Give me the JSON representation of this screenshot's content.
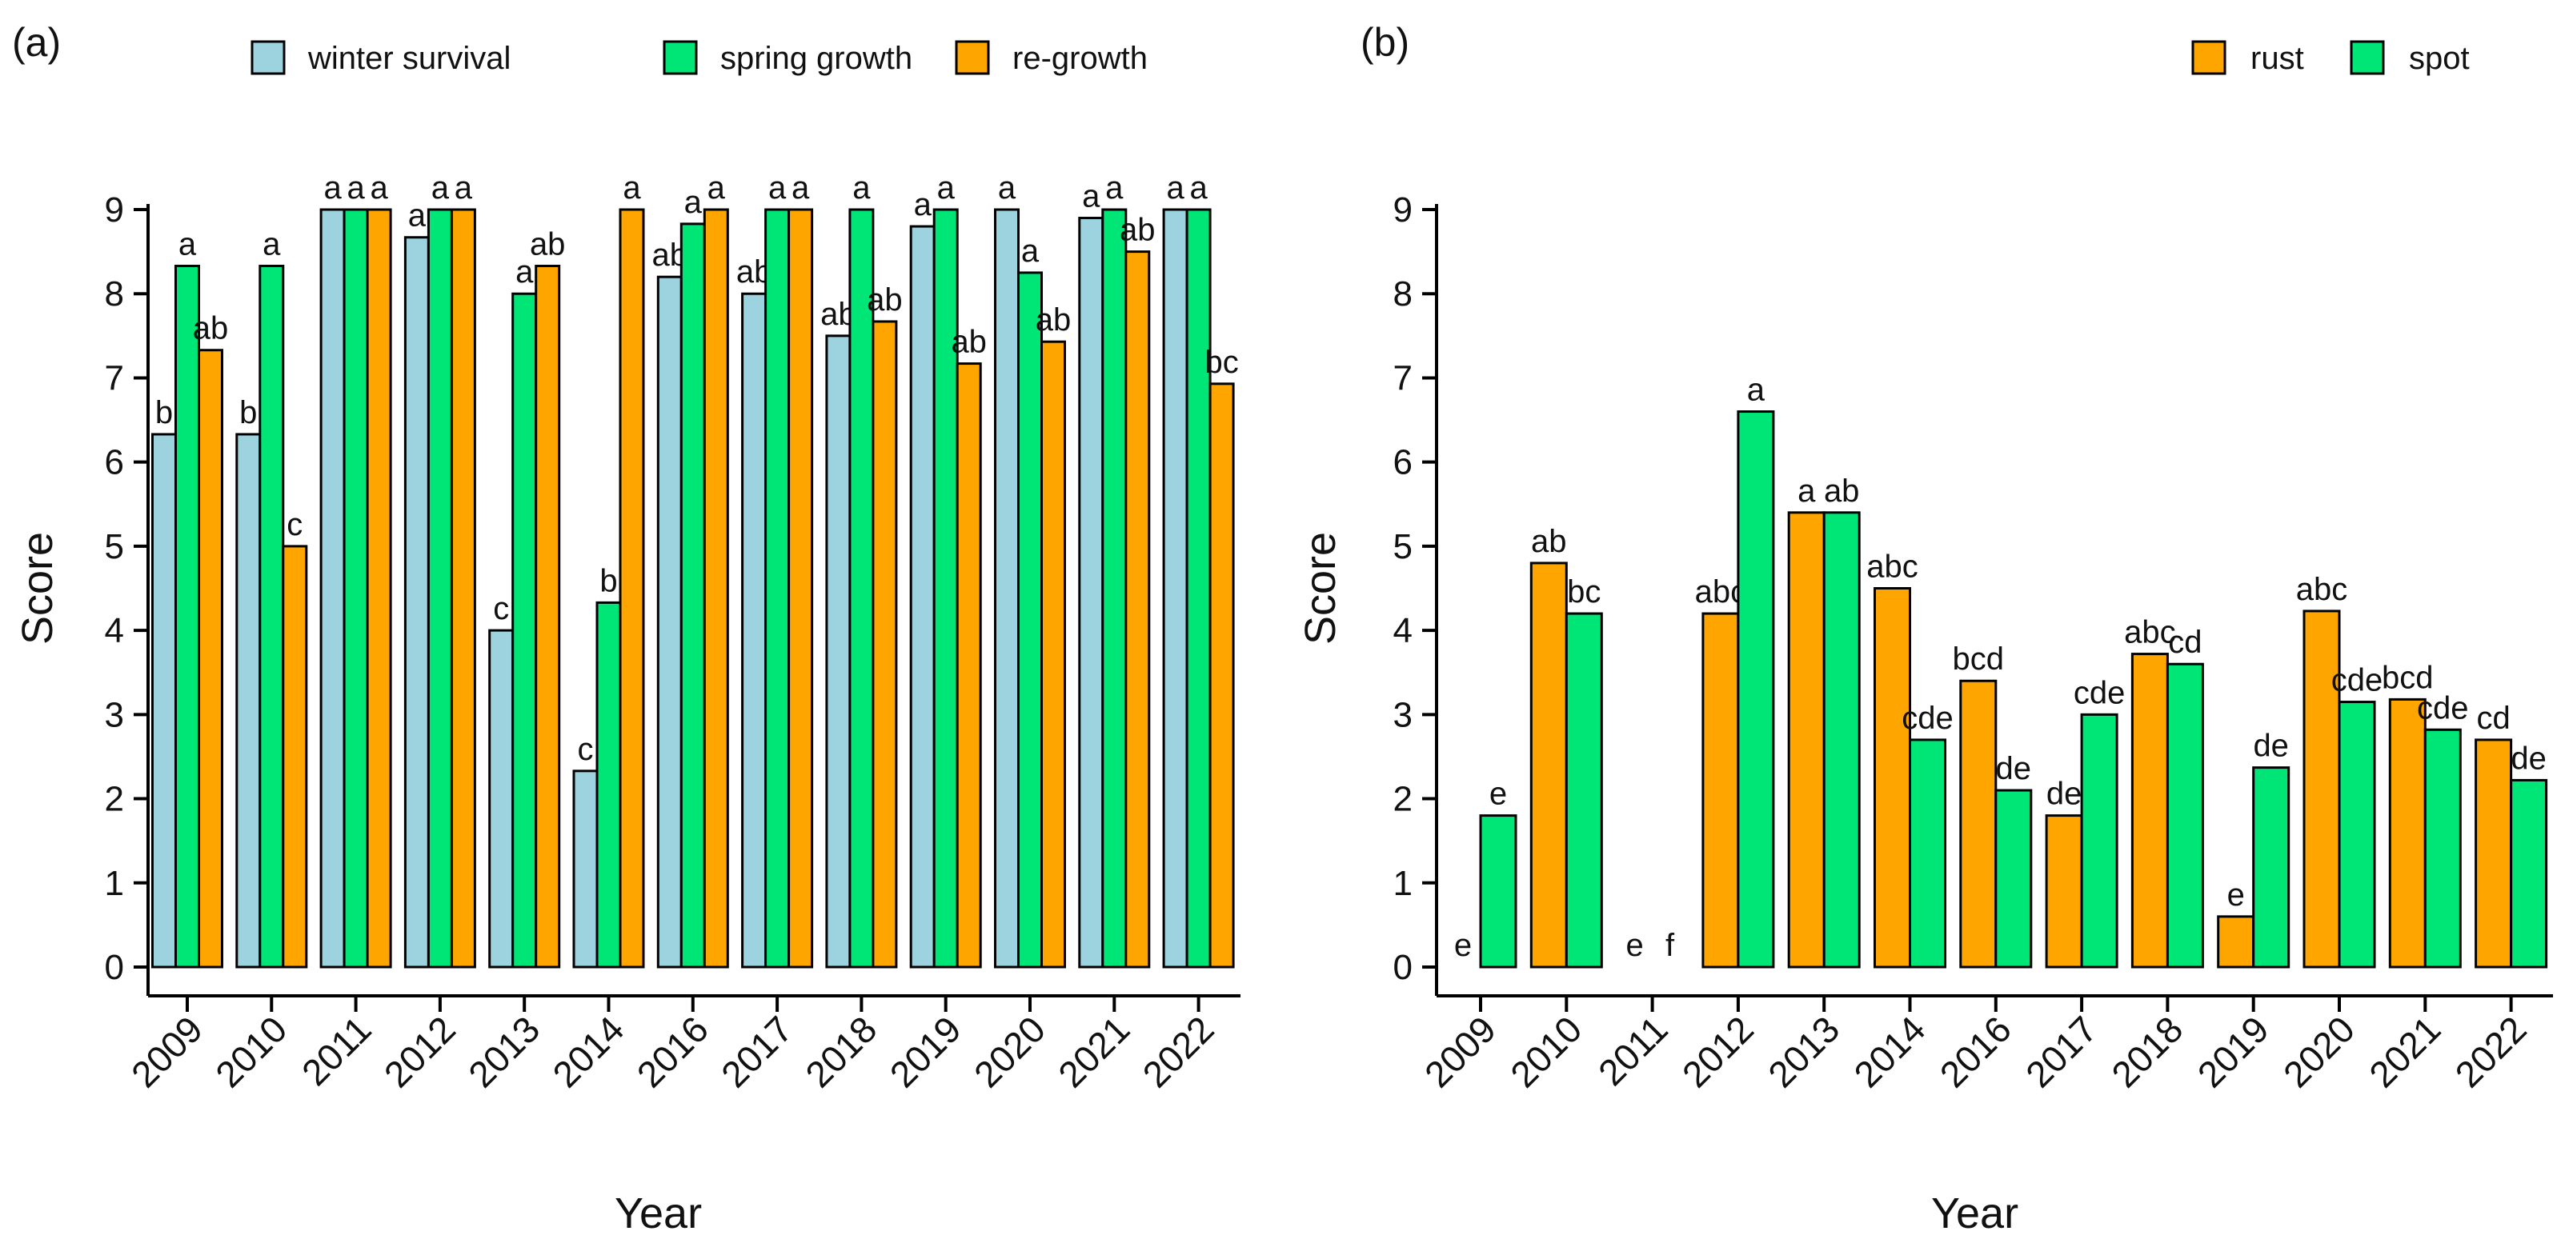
{
  "chart_data": [
    {
      "type": "bar",
      "panel_label": "(a)",
      "xlabel": "Year",
      "ylabel": "Score",
      "ylim": [
        0,
        9
      ],
      "yticks": [
        "0",
        "1",
        "2",
        "3",
        "4",
        "5",
        "6",
        "7",
        "8",
        "9"
      ],
      "categories": [
        "2009",
        "2010",
        "2011",
        "2012",
        "2013",
        "2014",
        "2016",
        "2017",
        "2018",
        "2019",
        "2020",
        "2021",
        "2022"
      ],
      "legend_position": "top",
      "series": [
        {
          "name": "winter survival",
          "color": "#9dd3df",
          "values": [
            6.33,
            6.33,
            9.0,
            8.67,
            4.0,
            2.33,
            8.2,
            8.0,
            7.5,
            8.8,
            9.0,
            8.9,
            9.0
          ],
          "labels": [
            "b",
            "b",
            "a",
            "a",
            "c",
            "c",
            "ab",
            "ab",
            "ab",
            "a",
            "a",
            "a",
            "a"
          ]
        },
        {
          "name": "spring growth",
          "color": "#00e676",
          "values": [
            8.33,
            8.33,
            9.0,
            9.0,
            8.0,
            4.33,
            8.83,
            9.0,
            9.0,
            9.0,
            8.25,
            9.0,
            9.0
          ],
          "labels": [
            "a",
            "a",
            "a",
            "a",
            "a",
            "b",
            "a",
            "a",
            "a",
            "a",
            "a",
            "a",
            "a"
          ]
        },
        {
          "name": "re-growth",
          "color": "#ffa500",
          "values": [
            7.33,
            5.0,
            9.0,
            9.0,
            8.33,
            9.0,
            9.0,
            9.0,
            7.67,
            7.17,
            7.43,
            8.5,
            6.93
          ],
          "labels": [
            "ab",
            "c",
            "a",
            "a",
            "ab",
            "a",
            "a",
            "a",
            "ab",
            "ab",
            "ab",
            "ab",
            "bc"
          ]
        }
      ]
    },
    {
      "type": "bar",
      "panel_label": "(b)",
      "xlabel": "Year",
      "ylabel": "Score",
      "ylim": [
        0,
        9
      ],
      "yticks": [
        "0",
        "1",
        "2",
        "3",
        "4",
        "5",
        "6",
        "7",
        "8",
        "9"
      ],
      "categories": [
        "2009",
        "2010",
        "2011",
        "2012",
        "2013",
        "2014",
        "2016",
        "2017",
        "2018",
        "2019",
        "2020",
        "2021",
        "2022"
      ],
      "legend_position": "top-right",
      "series": [
        {
          "name": "rust",
          "color": "#ffa500",
          "values": [
            0,
            4.8,
            0,
            4.2,
            5.4,
            4.5,
            3.4,
            1.8,
            3.72,
            0.6,
            4.23,
            3.18,
            2.7
          ],
          "labels": [
            "e",
            "ab",
            "e",
            "abc",
            "a",
            "abc",
            "bcd",
            "de",
            "abc",
            "e",
            "abc",
            "bcd",
            "cd"
          ]
        },
        {
          "name": "spot",
          "color": "#00e676",
          "values": [
            1.8,
            4.2,
            0,
            6.6,
            5.4,
            2.7,
            2.1,
            3.0,
            3.6,
            2.37,
            3.15,
            2.82,
            2.22
          ],
          "labels": [
            "e",
            "bc",
            "f",
            "a",
            "ab",
            "cde",
            "de",
            "cde",
            "cd",
            "de",
            "cde",
            "cde",
            "de"
          ]
        }
      ]
    }
  ]
}
